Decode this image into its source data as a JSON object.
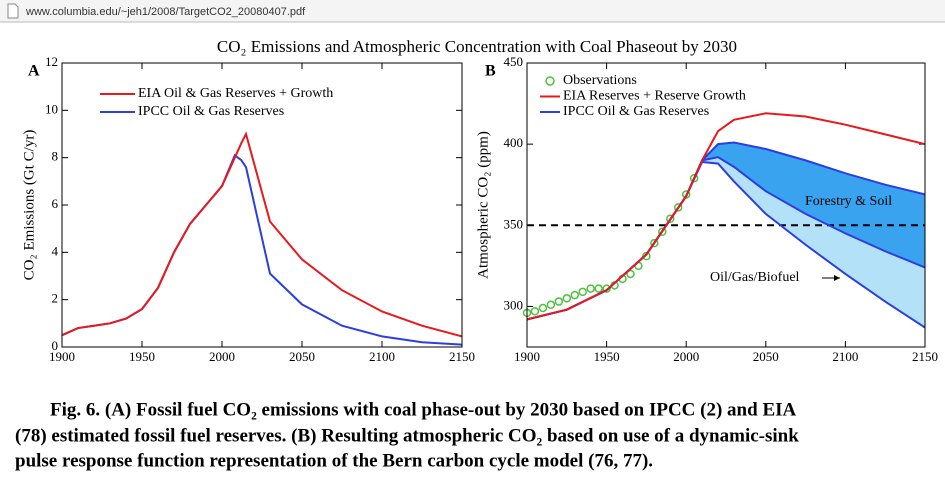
{
  "url": "www.columbia.edu/~jeh1/2008/TargetCO2_20080407.pdf",
  "title": "CO₂ Emissions and Atmospheric Concentration with Coal Phaseout by 2030",
  "caption": [
    "Fig. 6.  (A) Fossil fuel CO₂ emissions with coal phase-out by 2030 based on IPCC (2) and EIA",
    "(78) estimated fossil fuel reserves.  (B) Resulting atmospheric CO₂ based on use of a dynamic-sink",
    "pulse response function representation of the Bern carbon cycle model (76, 77)."
  ],
  "chart_data": [
    {
      "type": "line",
      "panel": "A",
      "y_label": "CO₂ Emissions (Gt C/yr)",
      "x": [
        1900,
        1910,
        1920,
        1930,
        1940,
        1950,
        1960,
        1970,
        1980,
        1990,
        2000,
        2008,
        2012,
        2015,
        2030,
        2050,
        2075,
        2100,
        2125,
        2150
      ],
      "series": [
        {
          "name": "EIA Oil & Gas Reserves + Growth",
          "color": "#e8191c",
          "values": [
            0.5,
            0.8,
            0.9,
            1.0,
            1.2,
            1.6,
            2.5,
            4.0,
            5.2,
            6.0,
            6.8,
            8.0,
            8.6,
            9.0,
            5.3,
            3.7,
            2.4,
            1.5,
            0.9,
            0.45
          ]
        },
        {
          "name": "IPCC Oil & Gas Reserves",
          "color": "#2b3ee0",
          "values": [
            0.5,
            0.8,
            0.9,
            1.0,
            1.2,
            1.6,
            2.5,
            4.0,
            5.2,
            6.0,
            6.8,
            8.1,
            7.9,
            7.6,
            3.1,
            1.8,
            0.9,
            0.45,
            0.2,
            0.1
          ]
        }
      ],
      "xlim": [
        1900,
        2150
      ],
      "xticks": [
        1900,
        1950,
        2000,
        2050,
        2100,
        2150
      ],
      "ylim": [
        0,
        12
      ],
      "yticks": [
        0,
        2,
        4,
        6,
        8,
        10,
        12
      ]
    },
    {
      "type": "line",
      "panel": "B",
      "y_label": "Atmospheric CO₂ (ppm)",
      "x": [
        1900,
        1925,
        1950,
        1975,
        2000,
        2010,
        2020,
        2030,
        2050,
        2075,
        2100,
        2125,
        2150
      ],
      "observations": {
        "name": "Observations",
        "color": "#4cc23c",
        "x": [
          1900,
          1905,
          1910,
          1915,
          1920,
          1925,
          1930,
          1935,
          1940,
          1945,
          1950,
          1955,
          1960,
          1965,
          1970,
          1975,
          1980,
          1985,
          1990,
          1995,
          2000,
          2005
        ],
        "values": [
          296,
          297,
          299,
          301,
          303,
          305,
          307,
          309,
          311,
          311,
          311,
          313,
          317,
          320,
          325,
          331,
          339,
          346,
          354,
          361,
          369,
          379
        ]
      },
      "series": [
        {
          "name": "EIA Reserves + Reserve Growth",
          "color": "#e8191c",
          "values": [
            292,
            298,
            310,
            332,
            368,
            390,
            408,
            415,
            419,
            417,
            412,
            406,
            400
          ]
        },
        {
          "name": "IPCC Oil & Gas Reserves",
          "color": "#2b3ee0",
          "values": [
            292,
            298,
            310,
            332,
            368,
            390,
            400,
            401,
            397,
            390,
            382,
            375,
            369
          ]
        },
        {
          "name": "Forestry & Soil",
          "color": "#2b3ee0",
          "fill": "#3aa3f0",
          "values": [
            292,
            298,
            310,
            332,
            368,
            390,
            392,
            386,
            371,
            357,
            345,
            334,
            324
          ]
        },
        {
          "name": "Oil/Gas/Biofuel",
          "color": "#2b3ee0",
          "fill": "#b3e2f8",
          "values": [
            292,
            298,
            310,
            332,
            368,
            389,
            388,
            377,
            357,
            338,
            320,
            303,
            287
          ]
        }
      ],
      "reference_line": 350,
      "xlim": [
        1900,
        2150
      ],
      "xticks": [
        1900,
        1950,
        2000,
        2050,
        2100,
        2150
      ],
      "ylim": [
        275,
        450
      ],
      "yticks": [
        300,
        350,
        400,
        450
      ]
    }
  ]
}
